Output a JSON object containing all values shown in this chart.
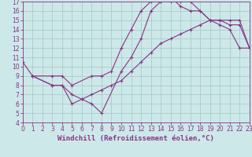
{
  "xlabel": "Windchill (Refroidissement éolien,°C)",
  "ylabel": "",
  "bg_color": "#cce8e8",
  "grid_color": "#aacccc",
  "line_color": "#883388",
  "xlim": [
    0,
    23
  ],
  "ylim": [
    4,
    17
  ],
  "xticks": [
    0,
    1,
    2,
    3,
    4,
    5,
    6,
    7,
    8,
    9,
    10,
    11,
    12,
    13,
    14,
    15,
    16,
    17,
    18,
    19,
    20,
    21,
    22,
    23
  ],
  "yticks": [
    4,
    5,
    6,
    7,
    8,
    9,
    10,
    11,
    12,
    13,
    14,
    15,
    16,
    17
  ],
  "series1_x": [
    0,
    1,
    3,
    4,
    5,
    7,
    8,
    9,
    10,
    11,
    12,
    13,
    14,
    15,
    16,
    17,
    18,
    19,
    20,
    21,
    22,
    23
  ],
  "series1_y": [
    10.5,
    9,
    9,
    9,
    8,
    9,
    9,
    9.5,
    12,
    14,
    16,
    17,
    17,
    17,
    17,
    17,
    16,
    15,
    14.5,
    14,
    12,
    12
  ],
  "series2_x": [
    1,
    3,
    4,
    5,
    6,
    7,
    8,
    10,
    11,
    12,
    13,
    14,
    15,
    16,
    17,
    18,
    19,
    20,
    21,
    22,
    23
  ],
  "series2_y": [
    9,
    8,
    8,
    6,
    6.5,
    6,
    5,
    9.5,
    11,
    13,
    16,
    17,
    17.5,
    16.5,
    16,
    16,
    15,
    15,
    14.5,
    14.5,
    12
  ],
  "series3_x": [
    1,
    3,
    4,
    5,
    6,
    7,
    8,
    9,
    10,
    11,
    12,
    13,
    14,
    15,
    16,
    17,
    18,
    19,
    20,
    21,
    22,
    23
  ],
  "series3_y": [
    9,
    8,
    8,
    7,
    6.5,
    7,
    7.5,
    8,
    8.5,
    9.5,
    10.5,
    11.5,
    12.5,
    13,
    13.5,
    14,
    14.5,
    15,
    15,
    15,
    15,
    12
  ],
  "tick_fontsize": 5.5,
  "label_fontsize": 6.5,
  "marker_size": 3
}
